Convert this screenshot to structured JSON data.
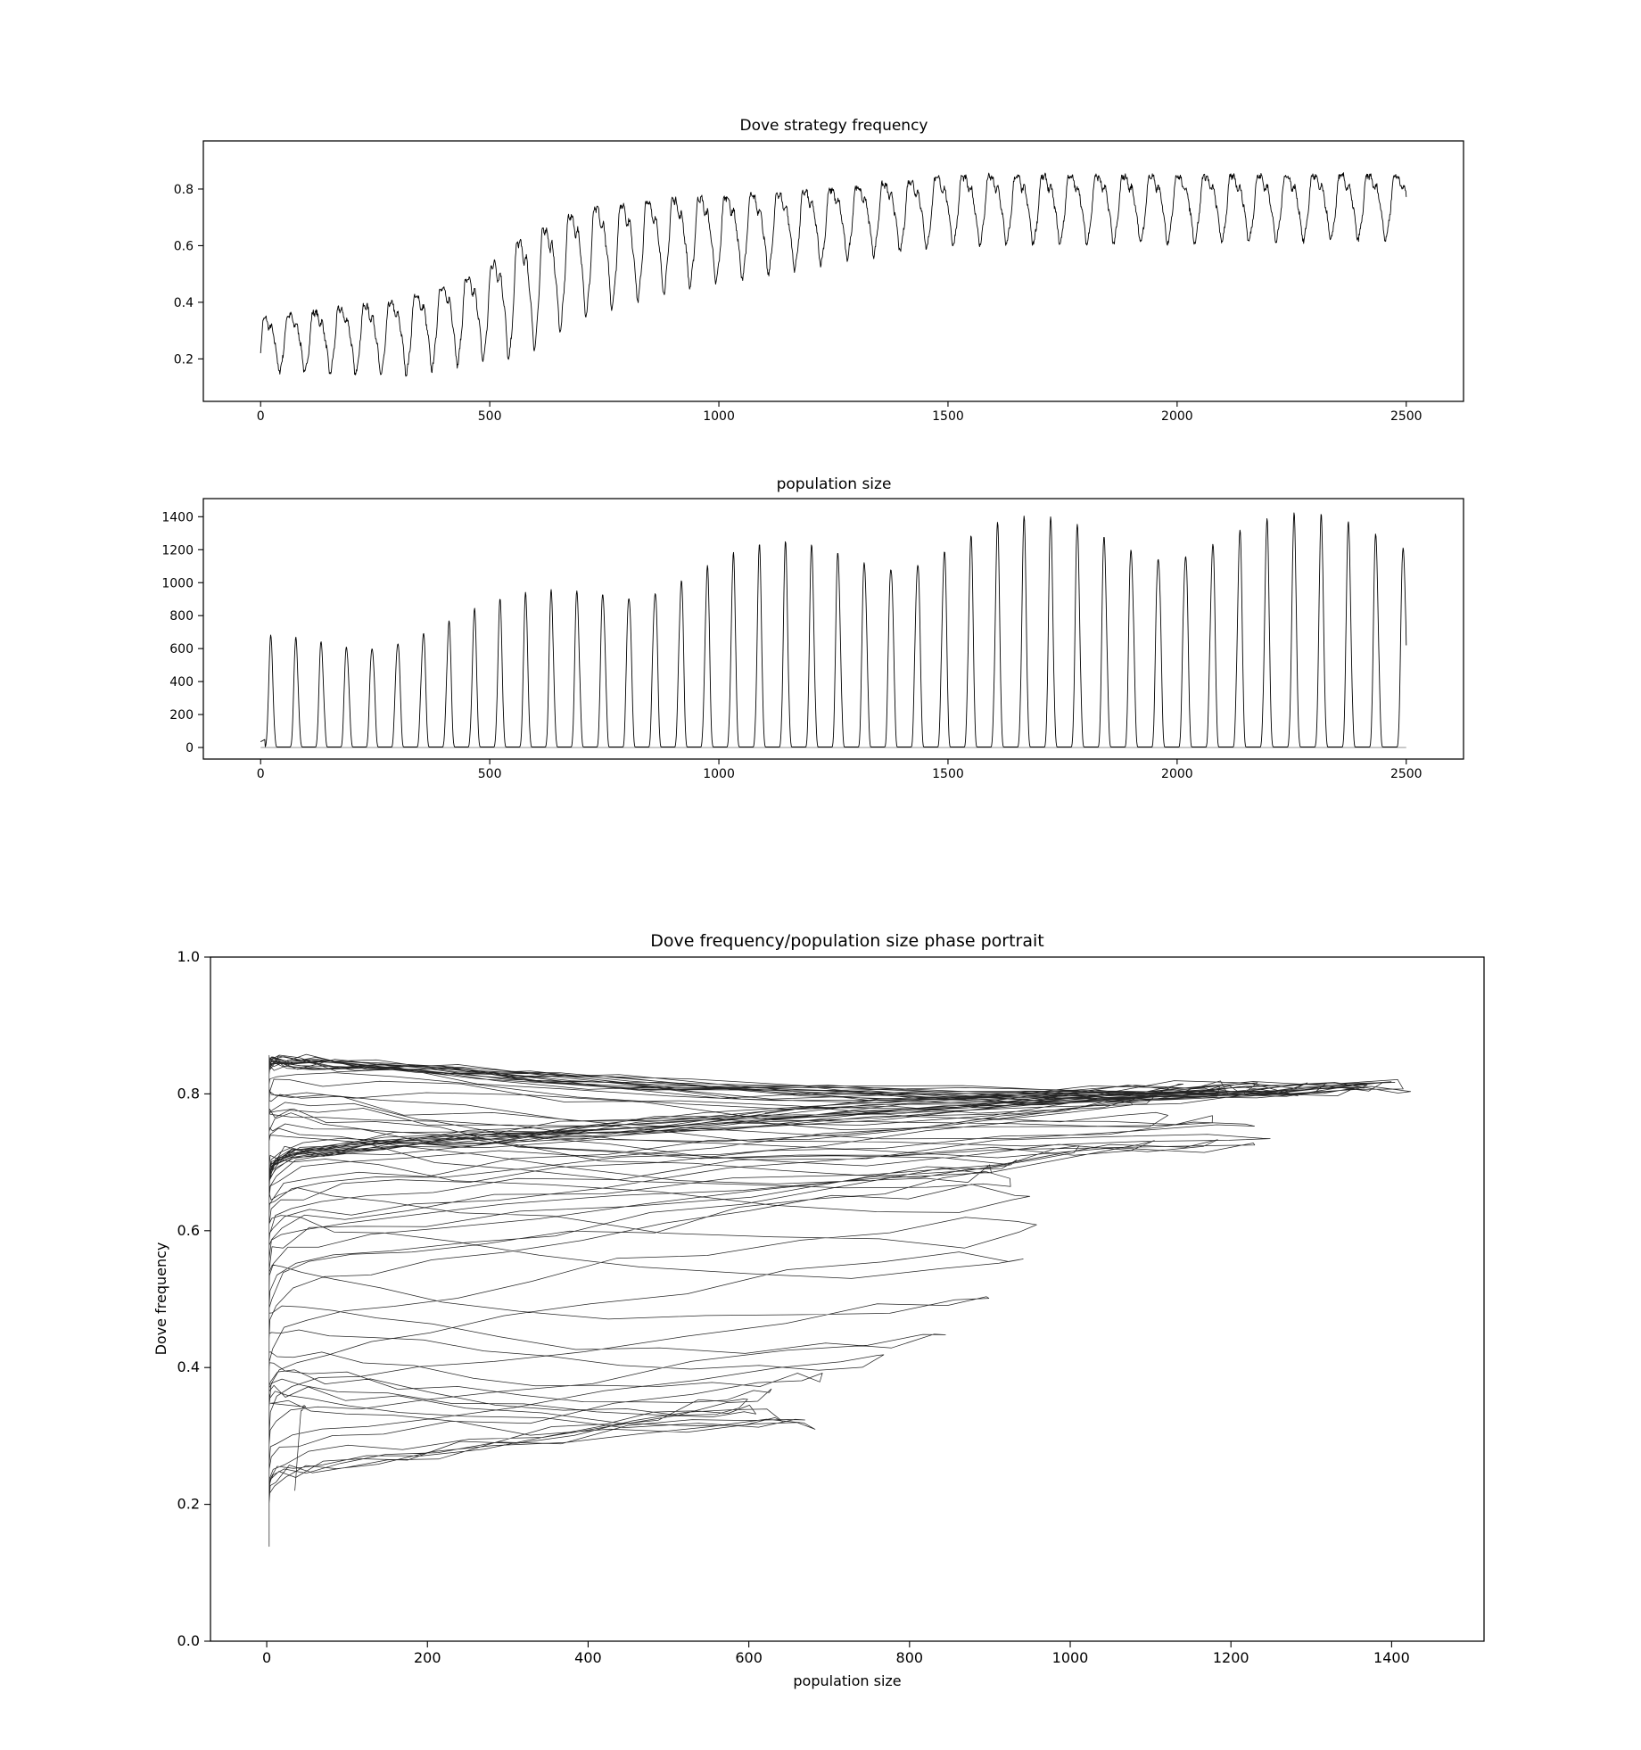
{
  "chart_data": [
    {
      "type": "line",
      "title": "Dove strategy frequency",
      "xlim": [
        -125,
        2625
      ],
      "ylim": [
        0.05,
        0.97
      ],
      "xticks": [
        "0",
        "500",
        "1000",
        "1500",
        "2000",
        "2500"
      ],
      "yticks": [
        "0.2",
        "0.4",
        "0.6",
        "0.8"
      ],
      "grid": false,
      "series": [
        {
          "model": "oscillation",
          "t_range": [
            0,
            2500
          ],
          "trend": [
            [
              0,
              0.27
            ],
            [
              300,
              0.3
            ],
            [
              480,
              0.38
            ],
            [
              560,
              0.45
            ],
            [
              700,
              0.58
            ],
            [
              900,
              0.64
            ],
            [
              1100,
              0.67
            ],
            [
              1300,
              0.71
            ],
            [
              1500,
              0.75
            ],
            [
              2500,
              0.76
            ]
          ],
          "amplitude": [
            [
              0,
              0.1
            ],
            [
              480,
              0.16
            ],
            [
              560,
              0.22
            ],
            [
              900,
              0.17
            ],
            [
              1300,
              0.13
            ],
            [
              2500,
              0.12
            ]
          ],
          "period": [
            [
              0,
              55
            ],
            [
              500,
              56
            ],
            [
              1000,
              57
            ],
            [
              2500,
              60
            ]
          ]
        }
      ]
    },
    {
      "type": "line",
      "title": "population size",
      "xlim": [
        -125,
        2625
      ],
      "ylim": [
        -70,
        1510
      ],
      "xticks": [
        "0",
        "500",
        "1000",
        "1500",
        "2000",
        "2500"
      ],
      "yticks": [
        "0",
        "200",
        "400",
        "600",
        "800",
        "1000",
        "1200",
        "1400"
      ],
      "grid": false,
      "baseline": 0,
      "series": [
        {
          "model": "pulses",
          "t_range": [
            0,
            2500
          ],
          "peak": [
            [
              0,
              680
            ],
            [
              200,
              720
            ],
            [
              400,
              820
            ],
            [
              550,
              920
            ],
            [
              750,
              1100
            ],
            [
              1000,
              1200
            ],
            [
              1300,
              1320
            ],
            [
              1600,
              1400
            ],
            [
              2000,
              1420
            ],
            [
              2500,
              1430
            ]
          ],
          "period": [
            [
              0,
              55
            ],
            [
              500,
              56
            ],
            [
              1000,
              57
            ],
            [
              2500,
              60
            ]
          ],
          "end_value": 620
        }
      ]
    },
    {
      "type": "line",
      "title": "Dove frequency/population size phase portrait",
      "xlabel": "population size",
      "ylabel": "Dove frequency",
      "xlim": [
        -70,
        1515
      ],
      "ylim": [
        0.0,
        1.0
      ],
      "xticks": [
        "0",
        "200",
        "400",
        "600",
        "800",
        "1000",
        "1200",
        "1400"
      ],
      "yticks": [
        "0.0",
        "0.2",
        "0.4",
        "0.6",
        "0.8",
        "1.0"
      ],
      "grid": false,
      "series": [
        {
          "model": "phase_portrait",
          "note": "x = population size, y = Dove frequency (same trajectory as above)"
        }
      ]
    }
  ]
}
